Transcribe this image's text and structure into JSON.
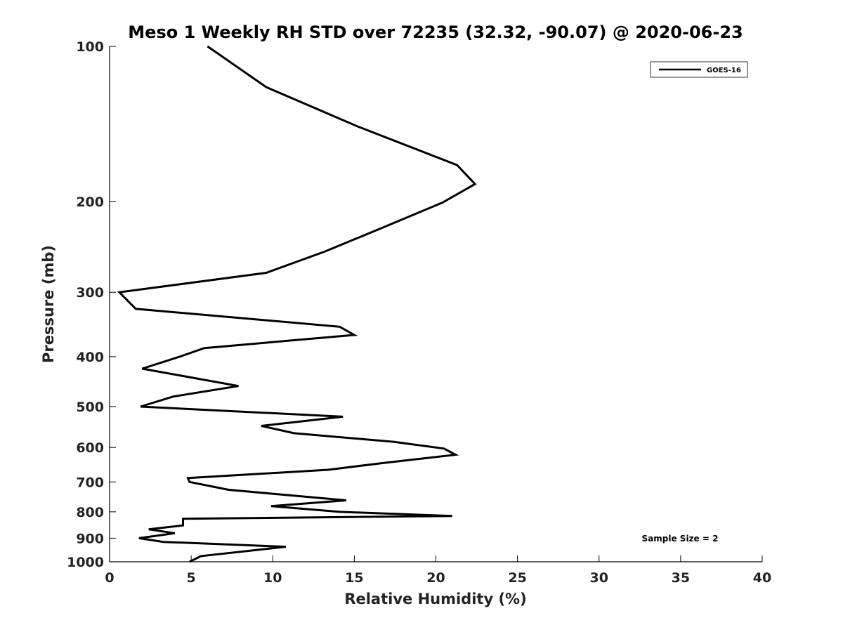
{
  "chart_data": {
    "type": "line",
    "title": "Meso 1 Weekly RH STD over 72235 (32.32, -90.07) @ 2020-06-23",
    "xlabel": "Relative Humidity (%)",
    "ylabel": "Pressure (mb)",
    "xlim": [
      0,
      40
    ],
    "ylim": [
      1000,
      100
    ],
    "yscale": "log",
    "grid": false,
    "legend_position": "top-right",
    "x_ticks": [
      0,
      5,
      10,
      15,
      20,
      25,
      30,
      35,
      40
    ],
    "x_tick_labels": [
      "0",
      "5",
      "10",
      "15",
      "20",
      "25",
      "30",
      "35",
      "40"
    ],
    "y_ticks": [
      100,
      200,
      300,
      400,
      500,
      600,
      700,
      800,
      900,
      1000
    ],
    "y_tick_labels": [
      "100",
      "200",
      "300",
      "400",
      "500",
      "600",
      "700",
      "800",
      "900",
      "1000"
    ],
    "annotation": "Sample Size = 2",
    "series": [
      {
        "name": "GOES-16",
        "color": "#000000",
        "points": [
          [
            6.0,
            100
          ],
          [
            9.6,
            120
          ],
          [
            15.2,
            143
          ],
          [
            21.3,
            170
          ],
          [
            22.4,
            185
          ],
          [
            20.4,
            201
          ],
          [
            16.7,
            225
          ],
          [
            13.2,
            250
          ],
          [
            9.6,
            275
          ],
          [
            0.6,
            300
          ],
          [
            1.6,
            323
          ],
          [
            14.1,
            350
          ],
          [
            15.0,
            363
          ],
          [
            5.8,
            385
          ],
          [
            4.3,
            400
          ],
          [
            2.0,
            422
          ],
          [
            7.9,
            456
          ],
          [
            3.9,
            478
          ],
          [
            1.9,
            500
          ],
          [
            14.3,
            523
          ],
          [
            9.3,
            545
          ],
          [
            11.3,
            563
          ],
          [
            17.4,
            585
          ],
          [
            20.5,
            603
          ],
          [
            21.2,
            620
          ],
          [
            16.8,
            643
          ],
          [
            13.4,
            663
          ],
          [
            4.8,
            688
          ],
          [
            4.9,
            700
          ],
          [
            7.3,
            725
          ],
          [
            14.5,
            760
          ],
          [
            9.9,
            780
          ],
          [
            14.1,
            800
          ],
          [
            21.0,
            815
          ],
          [
            4.5,
            825
          ],
          [
            4.5,
            850
          ],
          [
            2.4,
            865
          ],
          [
            4.0,
            880
          ],
          [
            1.8,
            900
          ],
          [
            3.3,
            915
          ],
          [
            10.8,
            935
          ],
          [
            5.6,
            975
          ],
          [
            4.9,
            1000
          ]
        ]
      }
    ]
  }
}
